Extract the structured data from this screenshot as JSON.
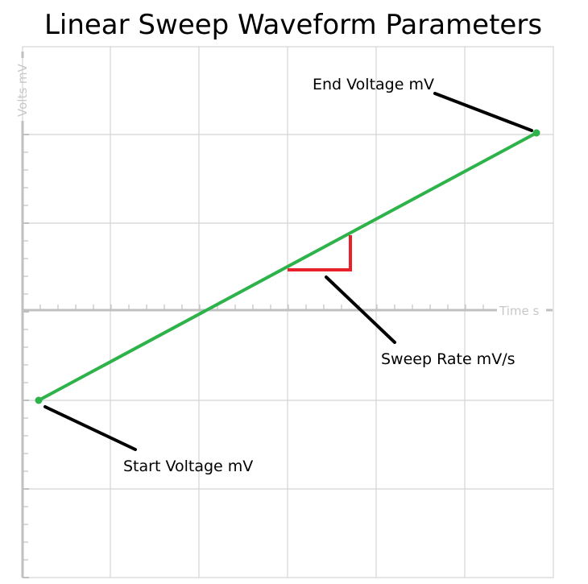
{
  "title": "Linear Sweep Waveform Parameters",
  "axes": {
    "x_label": "Time s",
    "y_label": "Volts mV"
  },
  "annotations": {
    "start_voltage": "Start Voltage mV",
    "end_voltage": "End Voltage mV",
    "sweep_rate": "Sweep Rate mV/s"
  },
  "colors": {
    "sweep_line": "#2db34a",
    "slope_marker": "#e8202a",
    "leader_lines": "#000000",
    "grid": "#d4d4d4",
    "axis": "#c0c0c0"
  }
}
